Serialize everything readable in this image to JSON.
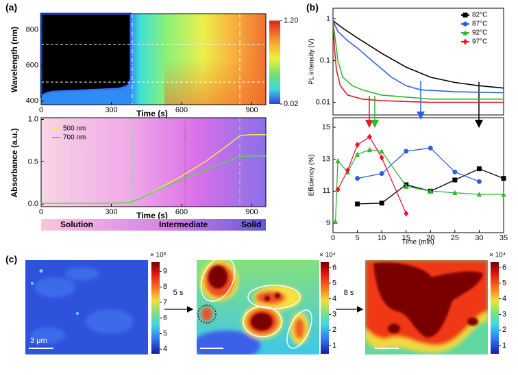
{
  "chart_data": [
    {
      "type": "heatmap",
      "panel": "(a)",
      "xlabel": "Time (s)",
      "ylabel": "Wavelength (nm)",
      "xlim": [
        0,
        960
      ],
      "xticks": [
        0,
        300,
        600,
        900
      ],
      "ylim": [
        380,
        890
      ],
      "yticks": [
        400,
        600,
        800
      ],
      "colorbar": {
        "clim": [
          0.02,
          1.2
        ],
        "ticks": [
          {
            "value": 1.2,
            "label": "1.20"
          },
          0.02
        ]
      }
    },
    {
      "type": "line",
      "xlabel": "Time (s)",
      "ylabel": "Absorbance (a.u.)",
      "xlim": [
        0,
        960
      ],
      "xticks": [
        0,
        300,
        600,
        900
      ],
      "ylim": [
        -0.03,
        1.02
      ],
      "yticks": [
        {
          "value": 0,
          "label": "0.0"
        },
        {
          "value": 0.5,
          "label": "0.5"
        },
        {
          "value": 1,
          "label": "1.0"
        }
      ],
      "legend": "upper left",
      "phases": [
        "Solution",
        "Intermediate",
        "Solid"
      ],
      "x": [
        0,
        100,
        200,
        300,
        380,
        420,
        500,
        600,
        700,
        800,
        850,
        900,
        960
      ],
      "series": [
        {
          "name": "500 nm",
          "color": "#f2e35c",
          "values": [
            0.01,
            0.01,
            0.01,
            0.01,
            0.02,
            0.06,
            0.18,
            0.33,
            0.5,
            0.7,
            0.81,
            0.82,
            0.82
          ]
        },
        {
          "name": "700 nm",
          "color": "#58d458",
          "values": [
            0.01,
            0.01,
            0.01,
            0.01,
            0.02,
            0.06,
            0.17,
            0.29,
            0.4,
            0.51,
            0.56,
            0.57,
            0.57
          ]
        }
      ]
    },
    {
      "type": "line",
      "panel": "(b)",
      "ylabel": "PL intensity (V)",
      "log_y": true,
      "xlim": [
        0,
        35
      ],
      "ylim": [
        0.005,
        1.8
      ],
      "yticks": [
        0.01,
        0.1,
        1
      ],
      "legend": "upper right",
      "series": [
        {
          "name": "82°C",
          "color": "#000000",
          "marker": "square",
          "x": [
            0,
            2,
            5,
            10,
            15,
            20,
            25,
            30,
            35
          ],
          "values": [
            0.9,
            0.6,
            0.35,
            0.15,
            0.07,
            0.04,
            0.03,
            0.025,
            0.022
          ]
        },
        {
          "name": "87°C",
          "color": "#2f5fe0",
          "marker": "circle",
          "x": [
            0,
            1,
            3,
            5,
            8,
            12,
            15,
            18,
            25,
            35
          ],
          "values": [
            0.9,
            0.5,
            0.3,
            0.2,
            0.1,
            0.04,
            0.025,
            0.02,
            0.018,
            0.017
          ]
        },
        {
          "name": "92°C",
          "color": "#2eb82e",
          "marker": "triangle",
          "x": [
            0,
            0.5,
            1,
            2,
            4,
            6,
            10,
            20,
            35
          ],
          "values": [
            0.85,
            0.3,
            0.1,
            0.04,
            0.025,
            0.02,
            0.015,
            0.012,
            0.012
          ]
        },
        {
          "name": "97°C",
          "color": "#e8182a",
          "marker": "diamond",
          "x": [
            0,
            0.3,
            0.7,
            1.5,
            3,
            6,
            10,
            20,
            35
          ],
          "values": [
            0.8,
            0.2,
            0.06,
            0.025,
            0.015,
            0.012,
            0.011,
            0.01,
            0.01
          ]
        }
      ]
    },
    {
      "type": "line",
      "markers": true,
      "xlabel": "Time (min)",
      "ylabel": "Efficiency (%)",
      "xlim": [
        0,
        35
      ],
      "xticks": [
        0,
        5,
        10,
        15,
        20,
        25,
        30,
        35
      ],
      "ylim": [
        8.4,
        15.6
      ],
      "yticks": [
        9,
        11,
        13,
        15
      ],
      "series": [
        {
          "color": "#000000",
          "marker": "square",
          "x": [
            5,
            10,
            15,
            20,
            25,
            30,
            35
          ],
          "values": [
            10.2,
            10.25,
            11.4,
            11.0,
            11.7,
            12.4,
            11.8
          ]
        },
        {
          "color": "#2f5fe0",
          "marker": "circle",
          "x": [
            5,
            10,
            15,
            20,
            25,
            30
          ],
          "values": [
            11.8,
            12.1,
            13.5,
            13.7,
            12.2,
            11.6
          ]
        },
        {
          "color": "#2eb82e",
          "marker": "triangle",
          "x": [
            0.5,
            1,
            3,
            5,
            7.5,
            10,
            15,
            20,
            25,
            30,
            35
          ],
          "values": [
            9.1,
            12.9,
            12.2,
            13.3,
            13.6,
            13.5,
            11.3,
            11.0,
            10.9,
            10.8,
            10.8
          ]
        },
        {
          "color": "#e8182a",
          "marker": "diamond",
          "x": [
            1,
            3,
            5,
            7.5,
            10,
            15
          ],
          "values": [
            11.1,
            12.3,
            13.9,
            14.4,
            13.1,
            9.6
          ]
        }
      ]
    },
    {
      "type": "image",
      "panel": "(c)",
      "arrows": [
        "5 s",
        "8 s"
      ],
      "scale_bar": "3 μm",
      "colorbars": [
        {
          "multiplier": "× 10³",
          "clim": [
            3.7,
            9.6
          ],
          "ticks": [
            4,
            5,
            6,
            7,
            8,
            9
          ]
        },
        {
          "multiplier": "× 10⁴",
          "clim": [
            0.48,
            6.35
          ],
          "ticks": [
            1,
            2,
            3,
            4,
            5,
            6
          ]
        },
        {
          "multiplier": "× 10⁴",
          "clim": [
            0.48,
            6.35
          ],
          "ticks": [
            1,
            2,
            3,
            4,
            5,
            6
          ]
        }
      ]
    }
  ]
}
